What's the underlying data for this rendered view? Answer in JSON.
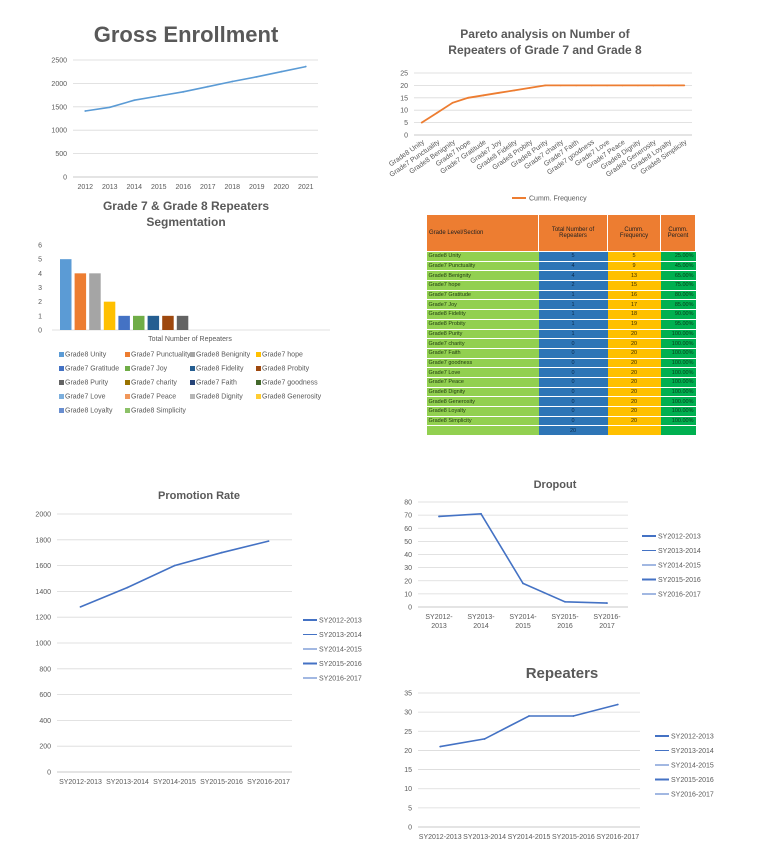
{
  "chart_data": [
    {
      "id": "gross",
      "type": "line",
      "title": "Gross Enrollment",
      "categories": [
        "2012",
        "2013",
        "2014",
        "2015",
        "2016",
        "2017",
        "2018",
        "2019",
        "2020",
        "2021"
      ],
      "series": [
        {
          "values": [
            1410,
            1490,
            1640,
            1730,
            1820,
            1930,
            2040,
            2140,
            2250,
            2360
          ]
        }
      ],
      "yticks": [
        "0",
        "500",
        "1000",
        "1500",
        "2000",
        "2500"
      ],
      "ylim": [
        0,
        2500
      ],
      "grid": true,
      "color": "#5B9BD5"
    },
    {
      "id": "pareto",
      "type": "line",
      "title": "Pareto analysis on Number of Repeaters of Grade 7 and Grade 8",
      "title_lines": [
        "Pareto analysis on Number of",
        "Repeaters of Grade 7 and Grade 8"
      ],
      "categories": [
        "Grade8 Unity",
        "Grade7 Punctuality",
        "Grade8 Benignity",
        "Grade7 hope",
        "Grade7 Gratitude",
        "Grade7 Joy",
        "Grade8 Fidelity",
        "Grade8 Probity",
        "Grade8 Purity",
        "Grade7 charity",
        "Grade7 Faith",
        "Grade7 goodness",
        "Grade7 Love",
        "Grade7 Peace",
        "Grade8 Dignity",
        "Grade8 Generosity",
        "Grade8 Loyalty",
        "Grade8 Simplicity"
      ],
      "series": [
        {
          "name": "Cumm. Frequency",
          "values": [
            5,
            9,
            13,
            15,
            16,
            17,
            18,
            19,
            20,
            20,
            20,
            20,
            20,
            20,
            20,
            20,
            20,
            20
          ]
        }
      ],
      "yticks": [
        "0",
        "5",
        "10",
        "15",
        "20",
        "25"
      ],
      "ylim": [
        0,
        25
      ],
      "grid": true,
      "color": "#ED7D31",
      "legend": "bottom"
    },
    {
      "id": "segmentation",
      "type": "bar",
      "title": "Grade 7 & Grade 8 Repeaters Segmentation",
      "title_lines": [
        "Grade 7 & Grade 8 Repeaters",
        "Segmentation"
      ],
      "xlabel": "Total Number of Repeaters",
      "series": [
        {
          "name": "Grade8 Unity",
          "value": 5,
          "color": "#5B9BD5"
        },
        {
          "name": "Grade7 Punctuality",
          "value": 4,
          "color": "#ED7D31"
        },
        {
          "name": "Grade8 Benignity",
          "value": 4,
          "color": "#A5A5A5"
        },
        {
          "name": "Grade7 hope",
          "value": 2,
          "color": "#FFC000"
        },
        {
          "name": "Grade7 Gratitude",
          "value": 1,
          "color": "#4472C4"
        },
        {
          "name": "Grade7 Joy",
          "value": 1,
          "color": "#70AD47"
        },
        {
          "name": "Grade8  Fidelity",
          "value": 1,
          "color": "#255E91"
        },
        {
          "name": "Grade8 Probity",
          "value": 1,
          "color": "#9E480E"
        },
        {
          "name": "Grade8 Purity",
          "value": 1,
          "color": "#636363"
        },
        {
          "name": "Grade7 charity",
          "value": 0,
          "color": "#997300"
        },
        {
          "name": "Grade7 Faith",
          "value": 0,
          "color": "#264478"
        },
        {
          "name": "Grade7 goodness",
          "value": 0,
          "color": "#43682B"
        },
        {
          "name": "Grade7 Love",
          "value": 0,
          "color": "#7CAFDD"
        },
        {
          "name": "Grade7 Peace",
          "value": 0,
          "color": "#F1975A"
        },
        {
          "name": "Grade8  Dignity",
          "value": 0,
          "color": "#B7B7B7"
        },
        {
          "name": "Grade8  Generosity",
          "value": 0,
          "color": "#FFCD33"
        },
        {
          "name": "Grade8  Loyalty",
          "value": 0,
          "color": "#698ED0"
        },
        {
          "name": "Grade8 Simplicity",
          "value": 0,
          "color": "#8CC168"
        }
      ],
      "yticks": [
        "0",
        "1",
        "2",
        "3",
        "4",
        "5",
        "6"
      ],
      "ylim": [
        0,
        6
      ],
      "legend": "bottom"
    },
    {
      "id": "table",
      "type": "table",
      "columns": [
        "Grade Level/Section",
        "Total Number of Repeaters",
        "Cumm. Frequency",
        "Cumm. Percent"
      ],
      "rows": [
        [
          "Grade8 Unity",
          "5",
          "5",
          "25.00%"
        ],
        [
          "Grade7 Punctuality",
          "4",
          "9",
          "45.00%"
        ],
        [
          "Grade8 Benignity",
          "4",
          "13",
          "65.00%"
        ],
        [
          "Grade7 hope",
          "2",
          "15",
          "75.00%"
        ],
        [
          "Grade7 Gratitude",
          "1",
          "16",
          "80.00%"
        ],
        [
          "Grade7 Joy",
          "1",
          "17",
          "85.00%"
        ],
        [
          "Grade8 Fidelity",
          "1",
          "18",
          "90.00%"
        ],
        [
          "Grade8 Probity",
          "1",
          "19",
          "95.00%"
        ],
        [
          "Grade8 Purity",
          "1",
          "20",
          "100.00%"
        ],
        [
          "Grade7 charity",
          "0",
          "20",
          "100.00%"
        ],
        [
          "Grade7 Faith",
          "0",
          "20",
          "100.00%"
        ],
        [
          "Grade7 goodness",
          "0",
          "20",
          "100.00%"
        ],
        [
          "Grade7 Love",
          "0",
          "20",
          "100.00%"
        ],
        [
          "Grade7 Peace",
          "0",
          "20",
          "100.00%"
        ],
        [
          "Grade8 Dignity",
          "0",
          "20",
          "100.00%"
        ],
        [
          "Grade8 Generosity",
          "0",
          "20",
          "100.00%"
        ],
        [
          "Grade8 Loyalty",
          "0",
          "20",
          "100.00%"
        ],
        [
          "Grade8 Simplicity",
          "0",
          "20",
          "100.00%"
        ],
        [
          "",
          "20",
          "",
          ""
        ]
      ]
    },
    {
      "id": "promotion",
      "type": "line",
      "title": "Promotion Rate",
      "categories": [
        "SY2012-2013",
        "SY2013-2014",
        "SY2014-2015",
        "SY2015-2016",
        "SY2016-2017"
      ],
      "series": [
        {
          "values": [
            1280,
            1430,
            1600,
            1700,
            1790
          ]
        }
      ],
      "yticks": [
        "0",
        "200",
        "400",
        "600",
        "800",
        "1000",
        "1200",
        "1400",
        "1600",
        "1800",
        "2000"
      ],
      "ylim": [
        0,
        2000
      ],
      "grid": true,
      "color": "#4472C4",
      "legend": [
        "SY2012-2013",
        "SY2013-2014",
        "SY2014-2015",
        "SY2015-2016",
        "SY2016-2017"
      ]
    },
    {
      "id": "dropout",
      "type": "line",
      "title": "Dropout",
      "categories": [
        "SY2012-2013",
        "SY2013-2014",
        "SY2014-2015",
        "SY2015-2016",
        "SY2016-2017"
      ],
      "series": [
        {
          "values": [
            69,
            71,
            18,
            4,
            3
          ]
        }
      ],
      "yticks": [
        "0",
        "10",
        "20",
        "30",
        "40",
        "50",
        "60",
        "70",
        "80"
      ],
      "ylim": [
        0,
        80
      ],
      "grid": true,
      "color": "#4472C4",
      "legend": [
        "SY2012-2013",
        "SY2013-2014",
        "SY2014-2015",
        "SY2015-2016",
        "SY2016-2017"
      ]
    },
    {
      "id": "repeaters",
      "type": "line",
      "title": "Repeaters",
      "categories": [
        "SY2012-2013",
        "SY2013-2014",
        "SY2014-2015",
        "SY2015-2016",
        "SY2016-2017"
      ],
      "series": [
        {
          "values": [
            21,
            23,
            29,
            29,
            32
          ]
        }
      ],
      "yticks": [
        "0",
        "5",
        "10",
        "15",
        "20",
        "25",
        "30",
        "35"
      ],
      "ylim": [
        0,
        35
      ],
      "grid": true,
      "color": "#4472C4",
      "legend": [
        "SY2012-2013",
        "SY2013-2014",
        "SY2014-2015",
        "SY2015-2016",
        "SY2016-2017"
      ]
    }
  ]
}
